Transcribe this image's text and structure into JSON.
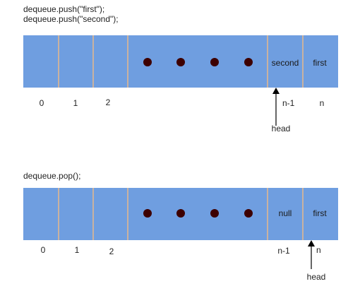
{
  "diagram": {
    "top": {
      "code": [
        "dequeue.push(\"first\");",
        "dequeue.push(\"second\");"
      ],
      "cells": [
        "",
        "",
        "",
        "",
        "second",
        "first"
      ],
      "index_labels": [
        "0",
        "1",
        "2",
        "n-1",
        "n"
      ],
      "pointer_label": "head"
    },
    "bottom": {
      "code": [
        "dequeue.pop();"
      ],
      "cells": [
        "",
        "",
        "",
        "",
        "null",
        "first"
      ],
      "index_labels": [
        "0",
        "1",
        "2",
        "n-1",
        "n"
      ],
      "pointer_label": "head"
    },
    "colors": {
      "cell_fill": "#6f9ee0",
      "cell_divider": "#e9b88a",
      "dot": "#3d0000",
      "arrow": "#000000"
    },
    "dot_count": 4
  }
}
